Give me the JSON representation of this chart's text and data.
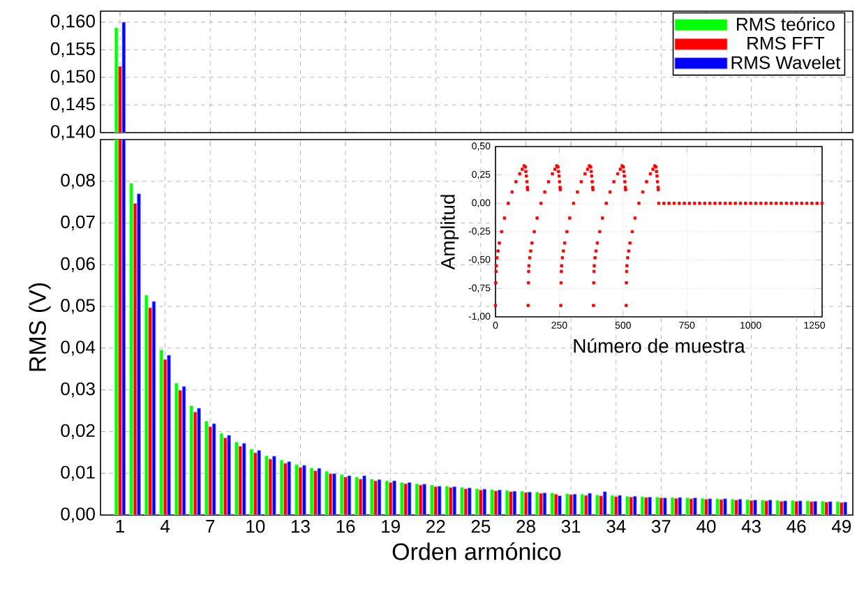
{
  "chart_data": [
    {
      "type": "bar",
      "categories": [
        "1",
        null,
        null,
        "4",
        null,
        null,
        "7",
        null,
        null,
        "10",
        null,
        null,
        "13",
        null,
        null,
        "16",
        null,
        null,
        "19",
        null,
        null,
        "22",
        null,
        null,
        "25",
        null,
        null,
        "28",
        null,
        null,
        "31",
        null,
        null,
        "34",
        null,
        null,
        "37",
        null,
        null,
        "40",
        null,
        null,
        "43",
        null,
        null,
        "46",
        null,
        null,
        "49"
      ],
      "series": [
        {
          "name": "RMS teórico",
          "color": "#00ff00",
          "values": [
            0.159,
            null,
            null,
            null,
            null,
            null,
            null,
            null,
            null,
            null,
            null,
            null,
            null,
            null,
            null,
            null,
            null,
            null,
            null,
            null,
            null,
            null,
            null,
            null,
            null,
            null,
            null,
            null,
            null,
            null,
            null,
            null,
            null,
            null,
            null,
            null,
            null,
            null,
            null,
            null,
            null,
            null,
            null,
            null,
            null,
            null,
            null,
            null,
            null
          ]
        },
        {
          "name": "RMS FFT",
          "color": "#ff0000",
          "values": [
            0.152,
            null,
            null,
            null,
            null,
            null,
            null,
            null,
            null,
            null,
            null,
            null,
            null,
            null,
            null,
            null,
            null,
            null,
            null,
            null,
            null,
            null,
            null,
            null,
            null,
            null,
            null,
            null,
            null,
            null,
            null,
            null,
            null,
            null,
            null,
            null,
            null,
            null,
            null,
            null,
            null,
            null,
            null,
            null,
            null,
            null,
            null,
            null,
            null
          ]
        },
        {
          "name": "RMS Wavelet",
          "color": "#0000ff",
          "values": [
            0.16,
            null,
            null,
            null,
            null,
            null,
            null,
            null,
            null,
            null,
            null,
            null,
            null,
            null,
            null,
            null,
            null,
            null,
            null,
            null,
            null,
            null,
            null,
            null,
            null,
            null,
            null,
            null,
            null,
            null,
            null,
            null,
            null,
            null,
            null,
            null,
            null,
            null,
            null,
            null,
            null,
            null,
            null,
            null,
            null,
            null,
            null,
            null,
            null
          ]
        }
      ],
      "ylim": [
        0.14,
        0.162
      ],
      "yticks": [
        {
          "value": 0.14,
          "label": "0,140"
        },
        {
          "value": 0.145,
          "label": "0,145"
        },
        {
          "value": 0.15,
          "label": "0,150"
        },
        {
          "value": 0.155,
          "label": "0,155"
        },
        {
          "value": 0.16,
          "label": "0,160"
        }
      ],
      "grid": true,
      "legend": "top right",
      "tick_labels": "y"
    },
    {
      "type": "bar",
      "categories": [
        "1",
        null,
        null,
        "4",
        null,
        null,
        "7",
        null,
        null,
        "10",
        null,
        null,
        "13",
        null,
        null,
        "16",
        null,
        null,
        "19",
        null,
        null,
        "22",
        null,
        null,
        "25",
        null,
        null,
        "28",
        null,
        null,
        "31",
        null,
        null,
        "34",
        null,
        null,
        "37",
        null,
        null,
        "40",
        null,
        null,
        "43",
        null,
        null,
        "46",
        null,
        null,
        "49"
      ],
      "xlabel": "Orden armónico",
      "ylabel": "RMS (V)",
      "series": [
        {
          "color": "#00ff00",
          "values": [
            null,
            0.0795,
            0.0527,
            0.0396,
            0.0316,
            0.0262,
            0.0225,
            0.0196,
            0.0175,
            0.0158,
            0.0142,
            0.0132,
            0.0121,
            0.0113,
            0.0105,
            0.0097,
            0.0091,
            0.0086,
            0.0082,
            0.0078,
            0.0075,
            0.0072,
            0.0069,
            0.0066,
            0.0063,
            0.0061,
            0.0059,
            0.0057,
            0.0055,
            0.0053,
            0.0051,
            0.005,
            0.0048,
            0.0047,
            0.0045,
            0.0044,
            0.0043,
            0.0042,
            0.0041,
            0.004,
            0.0039,
            0.0038,
            0.0037,
            0.0036,
            0.0035,
            0.0035,
            0.0034,
            0.0033,
            0.0032
          ]
        },
        {
          "color": "#ff0000",
          "values": [
            null,
            0.0747,
            0.0497,
            0.0373,
            0.0299,
            0.0247,
            0.0212,
            0.0185,
            0.0165,
            0.0149,
            0.0134,
            0.0124,
            0.0114,
            0.0106,
            0.0099,
            0.0091,
            0.0086,
            0.0082,
            0.0078,
            0.0075,
            0.0072,
            0.0068,
            0.0066,
            0.0063,
            0.006,
            0.0058,
            0.0056,
            0.0054,
            0.0052,
            0.005,
            0.0049,
            0.0047,
            0.0046,
            0.0044,
            0.0043,
            0.0042,
            0.0041,
            0.004,
            0.0039,
            0.0038,
            0.0037,
            0.0036,
            0.0035,
            0.0034,
            0.0033,
            0.0033,
            0.0032,
            0.0031,
            0.003
          ]
        },
        {
          "color": "#0000ff",
          "values": [
            null,
            0.077,
            0.0512,
            0.0383,
            0.0308,
            0.0256,
            0.0219,
            0.0191,
            0.0172,
            0.0155,
            0.0141,
            0.0128,
            0.0119,
            0.0112,
            0.0099,
            0.0094,
            0.0094,
            0.0085,
            0.0082,
            0.0078,
            0.0074,
            0.0069,
            0.0068,
            0.0065,
            0.0062,
            0.006,
            0.0057,
            0.0055,
            0.0053,
            0.0046,
            0.005,
            0.0052,
            0.0056,
            0.0047,
            0.0045,
            0.0043,
            0.0041,
            0.0042,
            0.0041,
            0.0039,
            0.0039,
            0.0038,
            0.0036,
            0.0036,
            0.0034,
            0.0034,
            0.0033,
            0.0032,
            0.0031
          ]
        }
      ],
      "ylim": [
        0,
        0.09
      ],
      "yticks": [
        {
          "value": 0,
          "label": "0,00"
        },
        {
          "value": 0.01,
          "label": "0,01"
        },
        {
          "value": 0.02,
          "label": "0,02"
        },
        {
          "value": 0.03,
          "label": "0,03"
        },
        {
          "value": 0.04,
          "label": "0,04"
        },
        {
          "value": 0.05,
          "label": "0,05"
        },
        {
          "value": 0.06,
          "label": "0,06"
        },
        {
          "value": 0.07,
          "label": "0,07"
        },
        {
          "value": 0.08,
          "label": "0,08"
        }
      ],
      "grid": true
    },
    {
      "type": "scatter",
      "xlabel": "Número de muestra",
      "ylabel": "Amplitud",
      "marker": "square",
      "x": [
        0,
        1,
        2,
        3,
        6,
        10,
        15,
        24,
        35,
        50,
        65,
        80,
        95,
        105,
        112,
        117,
        119,
        121,
        123,
        125,
        126,
        128,
        129,
        130,
        131,
        134,
        138,
        143,
        152,
        163,
        178,
        193,
        208,
        223,
        233,
        240,
        245,
        247,
        249,
        251,
        253,
        254,
        256,
        257,
        258,
        259,
        262,
        266,
        271,
        280,
        291,
        306,
        321,
        336,
        351,
        361,
        368,
        373,
        375,
        377,
        379,
        381,
        382,
        384,
        385,
        386,
        387,
        390,
        394,
        399,
        408,
        419,
        434,
        449,
        464,
        479,
        489,
        496,
        501,
        503,
        505,
        507,
        509,
        510,
        512,
        513,
        514,
        515,
        518,
        522,
        527,
        536,
        547,
        562,
        577,
        592,
        607,
        617,
        624,
        629,
        631,
        633,
        635,
        637,
        638,
        640,
        660,
        680,
        700,
        720,
        740,
        760,
        780,
        800,
        820,
        840,
        860,
        880,
        900,
        920,
        940,
        960,
        980,
        1000,
        1020,
        1040,
        1060,
        1080,
        1100,
        1120,
        1140,
        1160,
        1180,
        1200,
        1220,
        1240,
        1260,
        1280
      ],
      "series": [
        {
          "color": "#ff0000",
          "values": [
            -0.9,
            -0.7,
            -0.6,
            -0.55,
            -0.48,
            -0.42,
            -0.35,
            -0.25,
            -0.13,
            0.0,
            0.1,
            0.19,
            0.26,
            0.3,
            0.33,
            0.32,
            0.28,
            0.24,
            0.19,
            0.14,
            0.12,
            -0.9,
            -0.7,
            -0.6,
            -0.55,
            -0.48,
            -0.42,
            -0.35,
            -0.25,
            -0.13,
            0.0,
            0.1,
            0.19,
            0.26,
            0.3,
            0.33,
            0.32,
            0.28,
            0.24,
            0.19,
            0.14,
            0.12,
            -0.9,
            -0.7,
            -0.6,
            -0.55,
            -0.48,
            -0.42,
            -0.35,
            -0.25,
            -0.13,
            0.0,
            0.1,
            0.19,
            0.26,
            0.3,
            0.33,
            0.32,
            0.28,
            0.24,
            0.19,
            0.14,
            0.12,
            -0.9,
            -0.7,
            -0.6,
            -0.55,
            -0.48,
            -0.42,
            -0.35,
            -0.25,
            -0.13,
            0.0,
            0.1,
            0.19,
            0.26,
            0.3,
            0.33,
            0.32,
            0.28,
            0.24,
            0.19,
            0.14,
            0.12,
            -0.9,
            -0.7,
            -0.6,
            -0.55,
            -0.48,
            -0.42,
            -0.35,
            -0.25,
            -0.13,
            0.0,
            0.1,
            0.19,
            0.26,
            0.3,
            0.33,
            0.32,
            0.28,
            0.24,
            0.19,
            0.14,
            0.12,
            0,
            0,
            0,
            0,
            0,
            0,
            0,
            0,
            0,
            0,
            0,
            0,
            0,
            0,
            0,
            0,
            0,
            0,
            0,
            0,
            0,
            0,
            0,
            0,
            0,
            0,
            0,
            0,
            0,
            0,
            0,
            0,
            0
          ]
        }
      ],
      "xlim": [
        0,
        1280
      ],
      "xticks": [
        0,
        250,
        500,
        750,
        1000,
        1250
      ],
      "ylim": [
        -1,
        0.5
      ],
      "yticks": [
        {
          "value": -1,
          "label": "-1,00"
        },
        {
          "value": -0.75,
          "label": "-0,75"
        },
        {
          "value": -0.5,
          "label": "-0,50"
        },
        {
          "value": -0.25,
          "label": "-0,25"
        },
        {
          "value": 0,
          "label": "0,00"
        },
        {
          "value": 0.25,
          "label": "0,25"
        },
        {
          "value": 0.5,
          "label": "0,50"
        }
      ],
      "grid": true
    }
  ]
}
